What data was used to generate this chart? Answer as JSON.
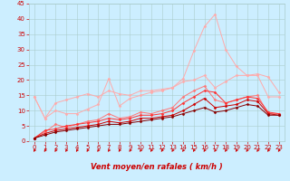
{
  "title": "",
  "xlabel": "Vent moyen/en rafales ( km/h )",
  "ylabel": "",
  "xlim": [
    -0.5,
    23.5
  ],
  "ylim": [
    0,
    45
  ],
  "yticks": [
    0,
    5,
    10,
    15,
    20,
    25,
    30,
    35,
    40,
    45
  ],
  "xticks": [
    0,
    1,
    2,
    3,
    4,
    5,
    6,
    7,
    8,
    9,
    10,
    11,
    12,
    13,
    14,
    15,
    16,
    17,
    18,
    19,
    20,
    21,
    22,
    23
  ],
  "bg_color": "#cceeff",
  "grid_color": "#aacccc",
  "series": [
    {
      "color": "#ffaaaa",
      "x": [
        0,
        1,
        2,
        3,
        4,
        5,
        6,
        7,
        8,
        9,
        10,
        11,
        12,
        13,
        14,
        15,
        16,
        17,
        18,
        19,
        20,
        21,
        22,
        23
      ],
      "y": [
        14.5,
        7.5,
        12.5,
        13.5,
        14.5,
        15.5,
        14.5,
        16.5,
        15.5,
        15.0,
        16.5,
        16.5,
        17.0,
        17.5,
        19.5,
        20.0,
        21.5,
        17.5,
        19.5,
        21.5,
        21.5,
        21.5,
        14.5,
        14.5
      ]
    },
    {
      "color": "#ffaaaa",
      "x": [
        0,
        1,
        2,
        3,
        4,
        5,
        6,
        7,
        8,
        9,
        10,
        11,
        12,
        13,
        14,
        15,
        16,
        17,
        18,
        19,
        20,
        21,
        22,
        23
      ],
      "y": [
        14.5,
        7.5,
        10.0,
        9.0,
        9.0,
        10.5,
        12.0,
        20.5,
        11.5,
        14.0,
        15.0,
        16.0,
        16.5,
        17.5,
        20.5,
        29.5,
        37.5,
        41.5,
        30.0,
        24.5,
        21.5,
        22.0,
        21.0,
        16.0
      ]
    },
    {
      "color": "#ff7777",
      "x": [
        0,
        1,
        2,
        3,
        4,
        5,
        6,
        7,
        8,
        9,
        10,
        11,
        12,
        13,
        14,
        15,
        16,
        17,
        18,
        19,
        20,
        21,
        22,
        23
      ],
      "y": [
        1.0,
        3.0,
        5.5,
        4.5,
        5.5,
        6.5,
        7.0,
        9.0,
        7.5,
        8.0,
        9.5,
        9.0,
        10.0,
        11.0,
        14.5,
        16.5,
        18.0,
        13.5,
        12.5,
        13.5,
        14.5,
        15.0,
        9.0,
        9.0
      ]
    },
    {
      "color": "#ff3333",
      "x": [
        0,
        1,
        2,
        3,
        4,
        5,
        6,
        7,
        8,
        9,
        10,
        11,
        12,
        13,
        14,
        15,
        16,
        17,
        18,
        19,
        20,
        21,
        22,
        23
      ],
      "y": [
        1.0,
        3.5,
        4.0,
        5.0,
        5.5,
        6.0,
        6.5,
        7.5,
        7.0,
        7.5,
        8.5,
        8.5,
        9.0,
        10.0,
        12.5,
        14.5,
        16.5,
        16.0,
        12.5,
        13.5,
        14.5,
        14.0,
        9.5,
        9.0
      ]
    },
    {
      "color": "#cc0000",
      "x": [
        0,
        1,
        2,
        3,
        4,
        5,
        6,
        7,
        8,
        9,
        10,
        11,
        12,
        13,
        14,
        15,
        16,
        17,
        18,
        19,
        20,
        21,
        22,
        23
      ],
      "y": [
        1.0,
        2.5,
        3.5,
        4.0,
        4.5,
        5.0,
        5.5,
        6.5,
        6.0,
        6.5,
        7.5,
        7.5,
        8.0,
        8.5,
        10.0,
        12.0,
        14.0,
        11.0,
        11.5,
        12.0,
        13.5,
        13.0,
        9.0,
        8.5
      ]
    },
    {
      "color": "#880000",
      "x": [
        0,
        1,
        2,
        3,
        4,
        5,
        6,
        7,
        8,
        9,
        10,
        11,
        12,
        13,
        14,
        15,
        16,
        17,
        18,
        19,
        20,
        21,
        22,
        23
      ],
      "y": [
        1.0,
        2.0,
        3.0,
        3.5,
        4.0,
        4.5,
        5.0,
        5.5,
        5.5,
        6.0,
        6.5,
        7.0,
        7.5,
        8.0,
        9.0,
        10.0,
        11.0,
        9.5,
        10.0,
        11.0,
        12.0,
        11.5,
        8.5,
        8.5
      ]
    }
  ],
  "marker": "D",
  "marker_size": 1.5,
  "linewidth": 0.7,
  "font_color": "#cc0000",
  "arrow_color": "#cc0000",
  "tick_fontsize": 5,
  "xlabel_fontsize": 6
}
